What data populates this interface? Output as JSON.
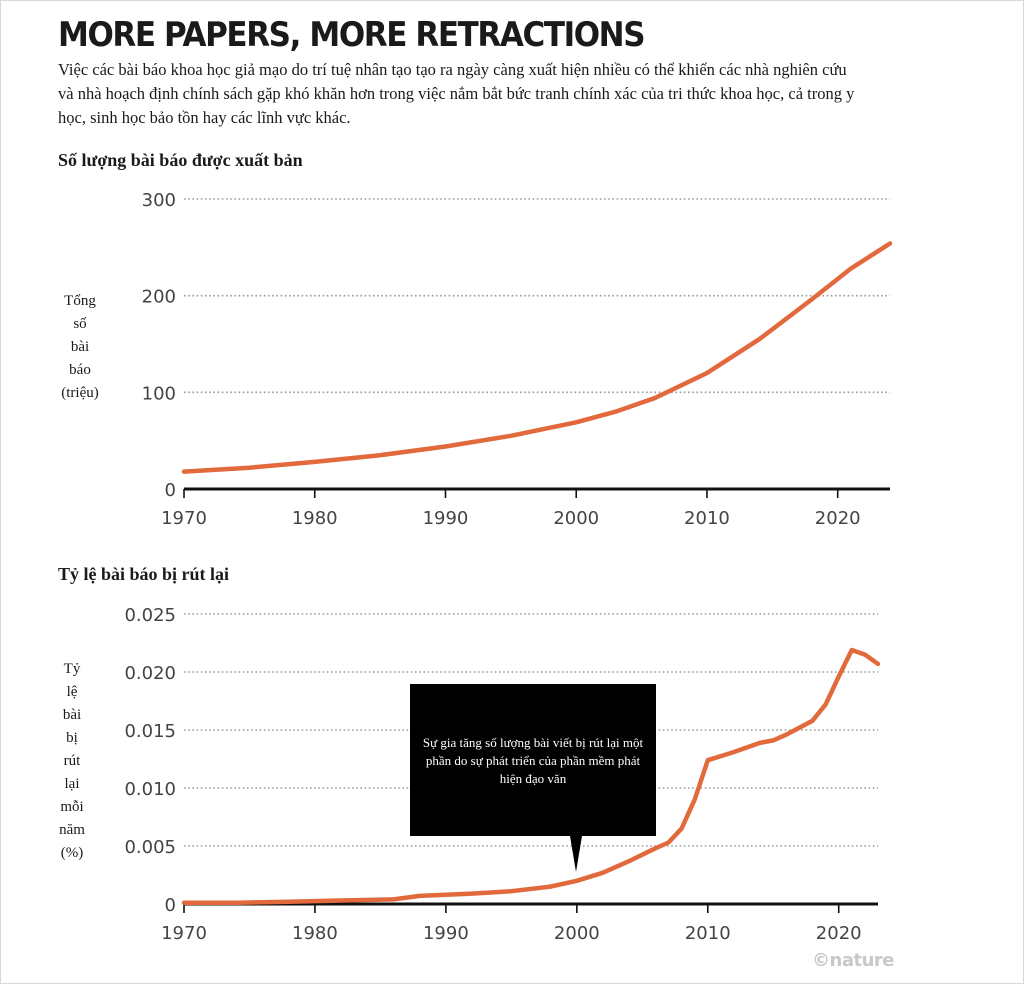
{
  "header": {
    "title": "MORE PAPERS, MORE RETRACTIONS",
    "subtitle": "Việc các bài báo khoa học giả mạo do trí tuệ nhân tạo tạo ra ngày càng xuất hiện nhiều có thể khiến các nhà nghiên cứu và nhà hoạch định chính sách gặp khó khăn hơn trong việc nắm bắt bức tranh chính xác của tri thức khoa học, cả trong y học, sinh học bảo tồn hay các lĩnh vực khác."
  },
  "chart1": {
    "section_title": "Số lượng bài báo được xuất bản",
    "ylabel_lines": [
      "Tổng",
      "số",
      "bài",
      "báo",
      "(triệu)"
    ]
  },
  "chart2": {
    "section_title": "Tỷ lệ bài báo bị rút lại",
    "ylabel_lines": [
      "Tỷ",
      "lệ",
      "bài",
      "bị",
      "rút",
      "lại",
      "mỗi",
      "năm",
      "(%)"
    ],
    "callout": "Sự gia tăng số lượng bài viết bị rút lại một phần do sự phát triển của phần mềm phát hiện đạo văn"
  },
  "credit": "©nature",
  "colors": {
    "line": "#e2693c",
    "axis": "#111111",
    "grid": "#9a9a9a"
  },
  "chart_data": [
    {
      "type": "line",
      "title": "Số lượng bài báo được xuất bản",
      "ylabel": "Tổng số bài báo (triệu)",
      "xlim": [
        1970,
        2024
      ],
      "ylim": [
        0,
        300
      ],
      "xticks": [
        1970,
        1980,
        1990,
        2000,
        2010,
        2020
      ],
      "yticks": [
        0,
        100,
        200,
        300
      ],
      "ytick_labels": [
        "0",
        "100",
        "200",
        "300"
      ],
      "grid": "horizontal dotted",
      "x": [
        1970,
        1975,
        1980,
        1985,
        1990,
        1995,
        2000,
        2003,
        2006,
        2010,
        2014,
        2018,
        2021,
        2024
      ],
      "y": [
        18,
        22,
        28,
        35,
        44,
        55,
        69,
        80,
        94,
        120,
        155,
        196,
        228,
        254
      ]
    },
    {
      "type": "line",
      "title": "Tỷ lệ bài báo bị rút lại",
      "ylabel": "Tỷ lệ bài bị rút lại mỗi năm (%)",
      "xlim": [
        1970,
        2023
      ],
      "ylim": [
        0,
        0.025
      ],
      "xticks": [
        1970,
        1980,
        1990,
        2000,
        2010,
        2020
      ],
      "yticks": [
        0,
        0.005,
        0.01,
        0.015,
        0.02,
        0.025
      ],
      "ytick_labels": [
        "0",
        "0.005",
        "0.010",
        "0.015",
        "0.020",
        "0.025"
      ],
      "grid": "horizontal dotted",
      "x": [
        1970,
        1974,
        1978,
        1982,
        1986,
        1988,
        1992,
        1995,
        1998,
        2000,
        2002,
        2004,
        2006,
        2007,
        2008,
        2009,
        2010,
        2012,
        2014,
        2015,
        2016,
        2018,
        2019,
        2020,
        2021,
        2022,
        2023
      ],
      "y": [
        0.0001,
        0.0001,
        0.0002,
        0.0003,
        0.0004,
        0.0007,
        0.0009,
        0.0011,
        0.0015,
        0.002,
        0.0027,
        0.0037,
        0.0048,
        0.0053,
        0.0065,
        0.009,
        0.0124,
        0.0131,
        0.0139,
        0.0141,
        0.0146,
        0.0158,
        0.0172,
        0.0196,
        0.0219,
        0.0215,
        0.0207
      ]
    }
  ]
}
